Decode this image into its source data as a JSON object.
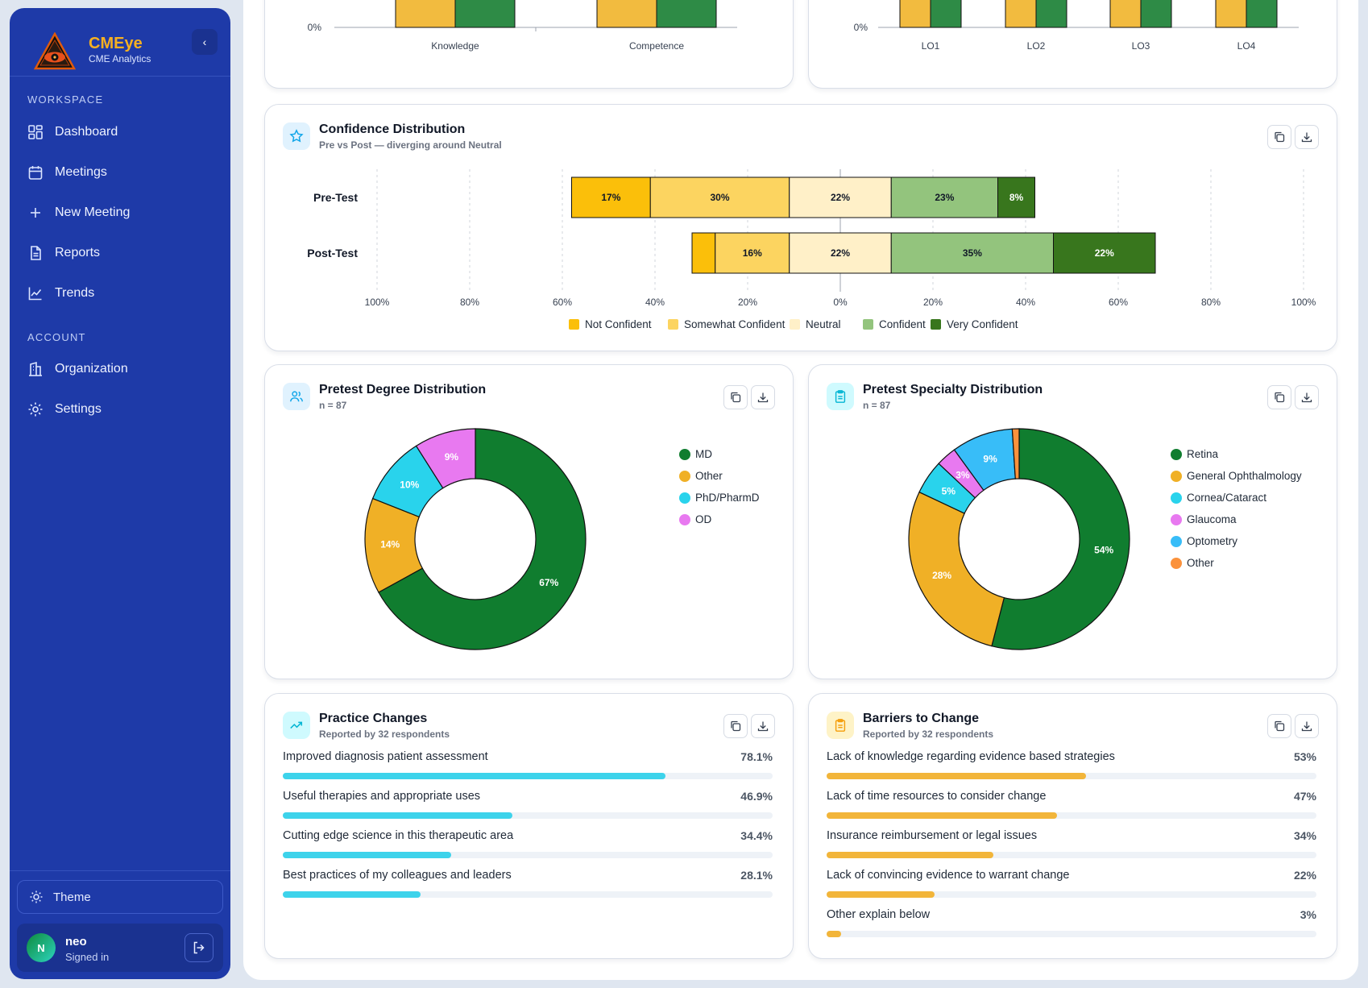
{
  "app": {
    "name": "CMEye",
    "subtitle": "CME Analytics"
  },
  "sidebar": {
    "workspace_label": "WORKSPACE",
    "account_label": "ACCOUNT",
    "workspace_items": [
      {
        "label": "Dashboard",
        "icon": "dashboard-icon"
      },
      {
        "label": "Meetings",
        "icon": "calendar-icon"
      },
      {
        "label": "New Meeting",
        "icon": "plus-icon"
      },
      {
        "label": "Reports",
        "icon": "document-icon"
      },
      {
        "label": "Trends",
        "icon": "trend-chart-icon"
      }
    ],
    "account_items": [
      {
        "label": "Organization",
        "icon": "building-icon"
      },
      {
        "label": "Settings",
        "icon": "gear-icon"
      }
    ],
    "theme_label": "Theme",
    "user": {
      "initial": "N",
      "name": "neo",
      "status": "Signed in"
    }
  },
  "top_charts": {
    "left": {
      "y_tick": "0%",
      "categories": [
        "Knowledge",
        "Competence"
      ]
    },
    "right": {
      "y_tick": "0%",
      "categories": [
        "LO1",
        "LO2",
        "LO3",
        "LO4"
      ]
    },
    "colors": {
      "pre": "#f2bb3f",
      "post": "#2e8b46"
    }
  },
  "confidence": {
    "title": "Confidence Distribution",
    "subtitle": "Pre vs Post — diverging around Neutral"
  },
  "degree": {
    "title": "Pretest Degree Distribution",
    "subtitle": "n = 87"
  },
  "specialty": {
    "title": "Pretest Specialty Distribution",
    "subtitle": "n = 87"
  },
  "practice": {
    "title": "Practice Changes",
    "subtitle": "Reported by 32 respondents",
    "color": "#3dd3eb",
    "items": [
      {
        "label": "Improved diagnosis patient assessment",
        "value": "78.1%",
        "fraction": 0.781
      },
      {
        "label": "Useful therapies and appropriate uses",
        "value": "46.9%",
        "fraction": 0.469
      },
      {
        "label": "Cutting edge science in this therapeutic area",
        "value": "34.4%",
        "fraction": 0.344
      },
      {
        "label": "Best practices of my colleagues and leaders",
        "value": "28.1%",
        "fraction": 0.281
      }
    ]
  },
  "barriers": {
    "title": "Barriers to Change",
    "subtitle": "Reported by 32 respondents",
    "color": "#f2b53a",
    "items": [
      {
        "label": "Lack of knowledge regarding evidence based strategies",
        "value": "53%",
        "fraction": 0.53
      },
      {
        "label": "Lack of time resources to consider change",
        "value": "47%",
        "fraction": 0.47
      },
      {
        "label": "Insurance reimbursement or legal issues",
        "value": "34%",
        "fraction": 0.34
      },
      {
        "label": "Lack of convincing evidence to warrant change",
        "value": "22%",
        "fraction": 0.22
      },
      {
        "label": "Other explain below",
        "value": "3%",
        "fraction": 0.03
      }
    ]
  },
  "chart_data": [
    {
      "type": "bar",
      "orientation": "horizontal-stacked-diverging",
      "title": "Confidence Distribution",
      "subtitle": "Pre vs Post — diverging around Neutral",
      "categories": [
        "Pre-Test",
        "Post-Test"
      ],
      "series": [
        {
          "name": "Not Confident",
          "color": "#fbbf0a",
          "values": [
            17,
            5
          ],
          "labels": [
            "17%",
            ""
          ]
        },
        {
          "name": "Somewhat Confident",
          "color": "#fcd460",
          "values": [
            30,
            16
          ],
          "labels": [
            "30%",
            "16%"
          ]
        },
        {
          "name": "Neutral",
          "color": "#fff0c8",
          "values": [
            22,
            22
          ],
          "labels": [
            "22%",
            "22%"
          ]
        },
        {
          "name": "Confident",
          "color": "#93c47d",
          "values": [
            23,
            35
          ],
          "labels": [
            "23%",
            "35%"
          ]
        },
        {
          "name": "Very Confident",
          "color": "#38761d",
          "values": [
            8,
            22
          ],
          "labels": [
            "8%",
            "22%"
          ]
        }
      ],
      "x_ticks": [
        "100%",
        "80%",
        "60%",
        "40%",
        "20%",
        "0%",
        "20%",
        "40%",
        "60%",
        "80%",
        "100%"
      ],
      "xlim": [
        -100,
        100
      ],
      "grid": true,
      "legend_position": "bottom"
    },
    {
      "type": "pie",
      "variant": "donut",
      "title": "Pretest Degree Distribution",
      "subtitle": "n = 87",
      "labels": [
        "MD",
        "Other",
        "PhD/PharmD",
        "OD"
      ],
      "values": [
        67,
        14,
        10,
        9
      ],
      "value_labels": [
        "67%",
        "14%",
        "10%",
        "9%"
      ],
      "colors": [
        "#107d2f",
        "#f0b026",
        "#29d3ec",
        "#e879f0"
      ],
      "legend_position": "right"
    },
    {
      "type": "pie",
      "variant": "donut",
      "title": "Pretest Specialty Distribution",
      "subtitle": "n = 87",
      "labels": [
        "Retina",
        "General Ophthalmology",
        "Cornea/Cataract",
        "Glaucoma",
        "Optometry",
        "Other"
      ],
      "values": [
        54,
        28,
        5,
        3,
        9,
        1
      ],
      "value_labels": [
        "54%",
        "28%",
        "5%",
        "3%",
        "9%",
        ""
      ],
      "colors": [
        "#107d2f",
        "#f0b026",
        "#29d3ec",
        "#e879f0",
        "#38bdf8",
        "#fb923c"
      ],
      "legend_position": "right"
    }
  ]
}
